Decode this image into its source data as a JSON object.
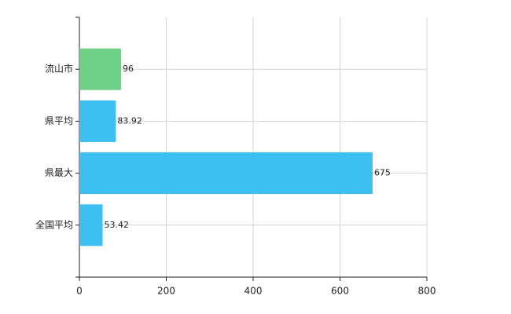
{
  "chart_data": {
    "type": "hbar",
    "categories": [
      "流山市",
      "県平均",
      "県最大",
      "全国平均"
    ],
    "values": [
      96,
      83.92,
      675,
      53.42
    ],
    "colors": [
      "#6fd188",
      "#3dbff2",
      "#3dbff2",
      "#3dbff2"
    ],
    "xlim": [
      0,
      800
    ],
    "xticks": [
      0,
      200,
      400,
      600,
      800
    ],
    "grid": true
  }
}
